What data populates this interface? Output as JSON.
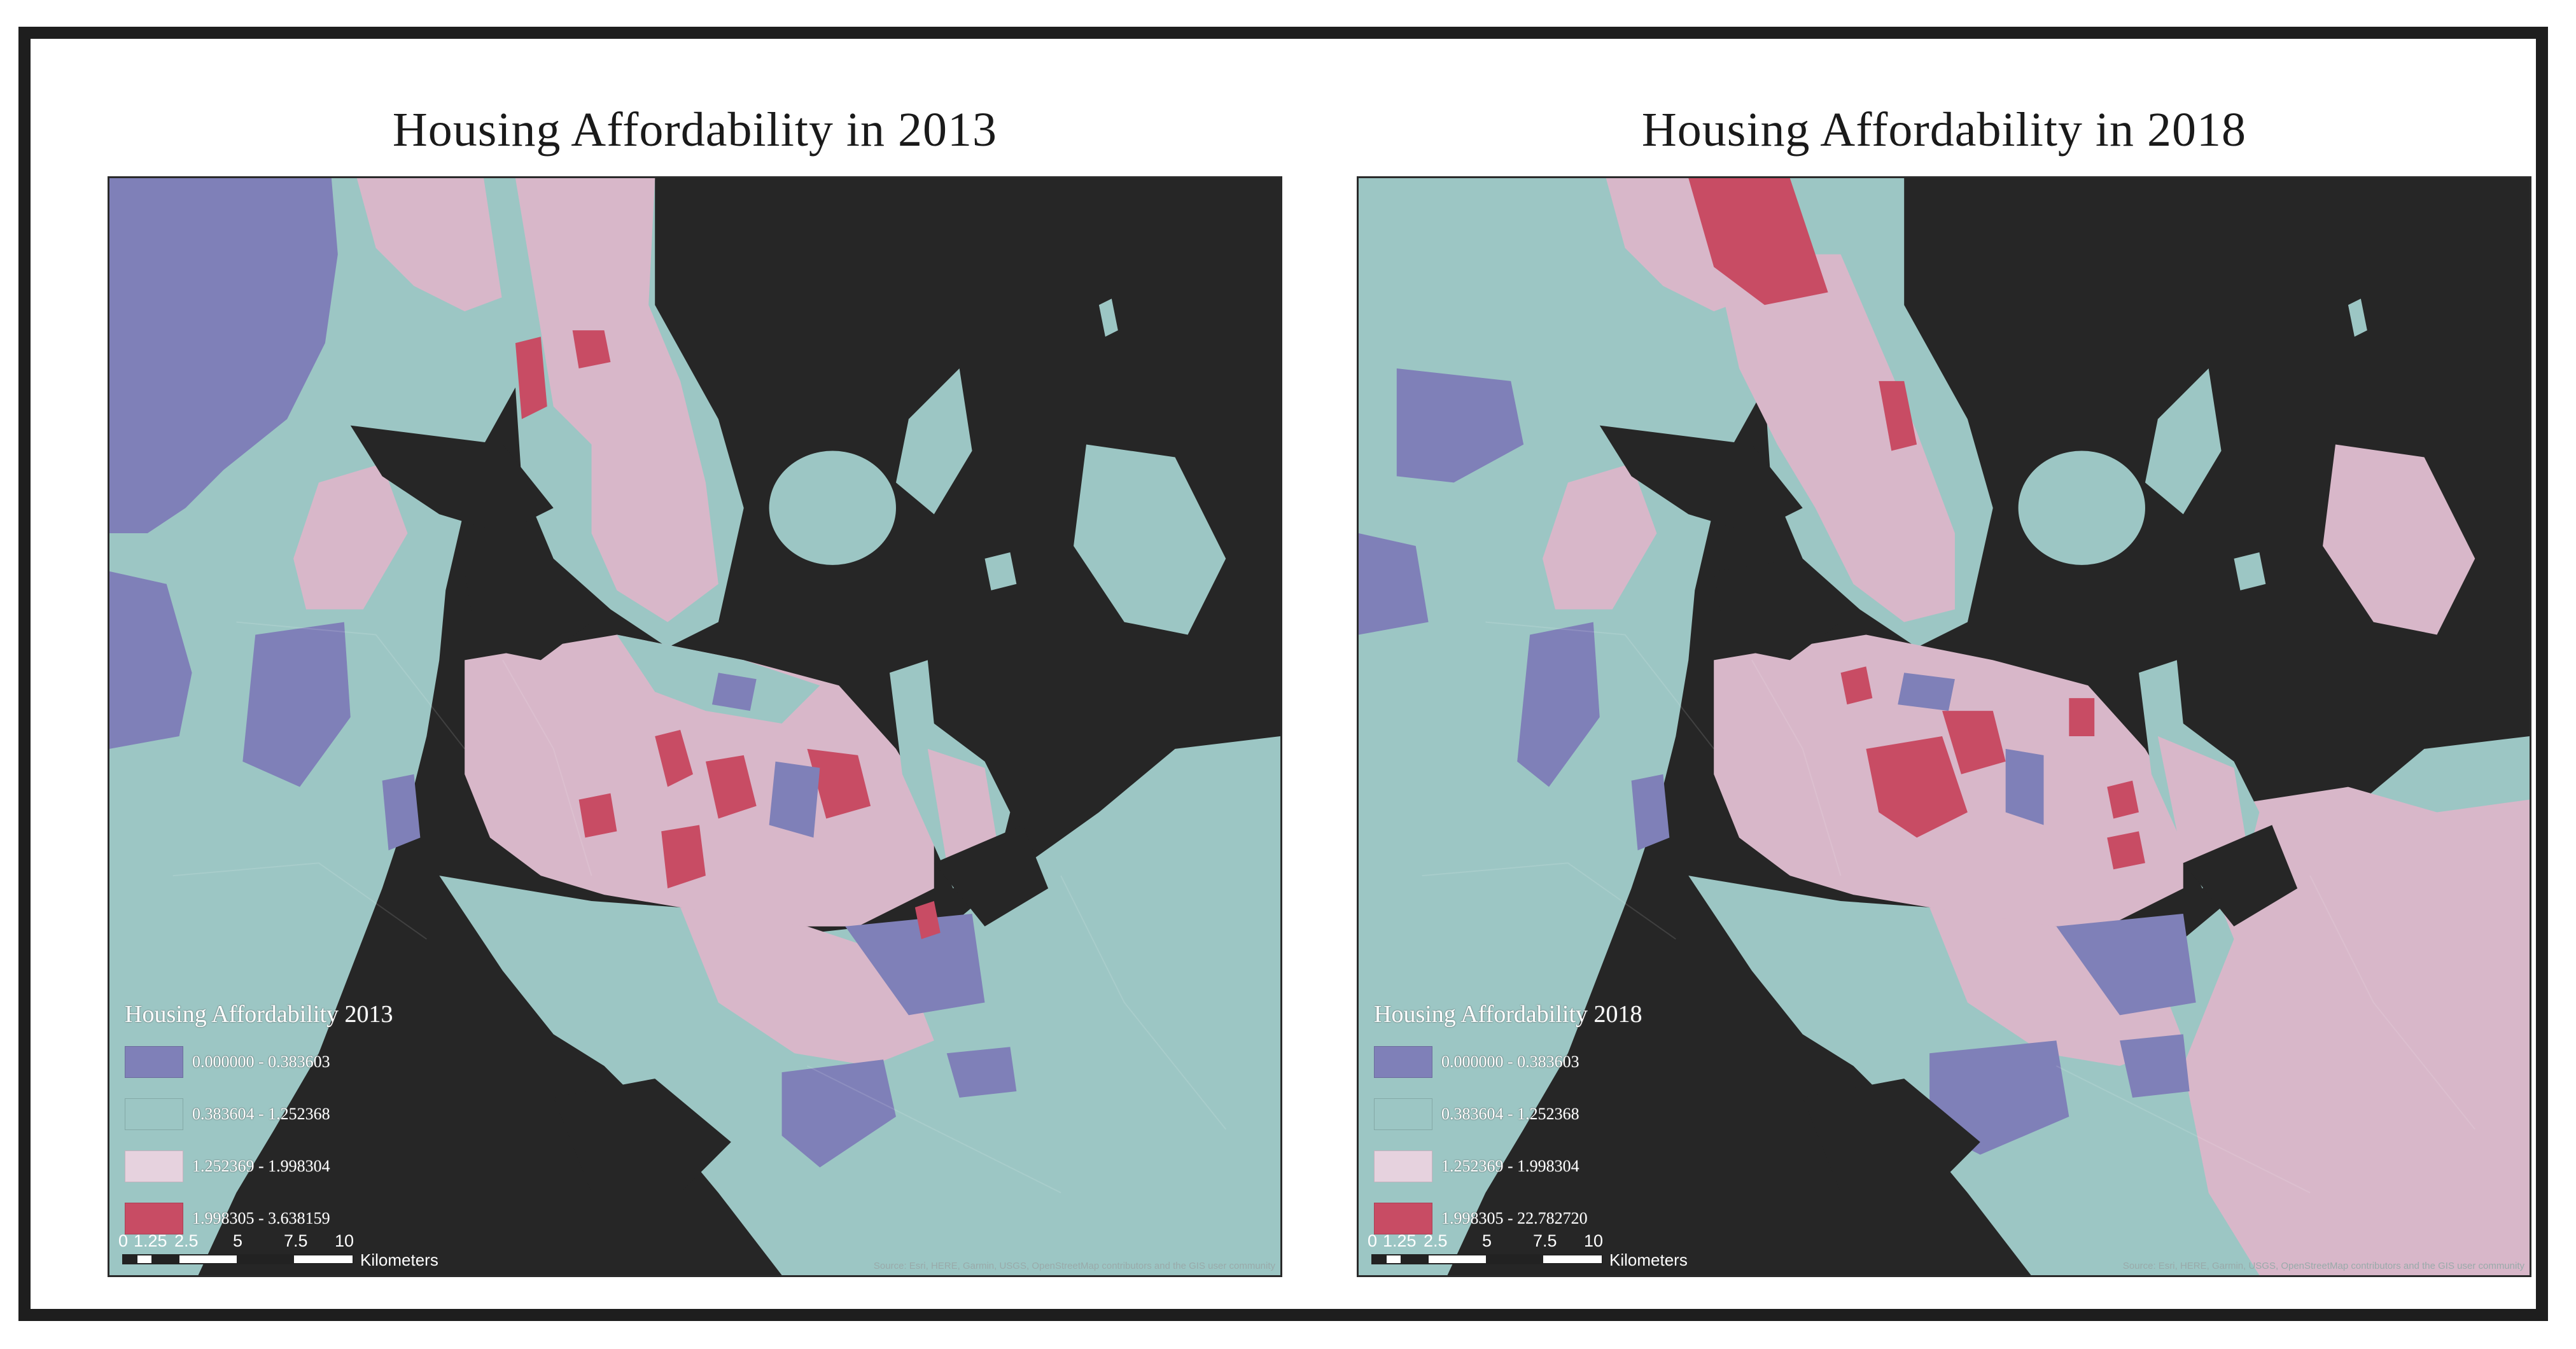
{
  "colors": {
    "water": "#262626",
    "class1": "#7f80b8",
    "class2": "#9cc6c4",
    "class3": "#d8b7c9",
    "class4": "#c84c64"
  },
  "panels": [
    {
      "title": "Housing Affordability in 2013",
      "legend": {
        "title": "Housing Affordability 2013",
        "items": [
          {
            "label": "0.000000 - 0.383603",
            "color": "#7f80b8"
          },
          {
            "label": "0.383604 - 1.252368",
            "color": "#9cc6c4"
          },
          {
            "label": "1.252369 - 1.998304",
            "color": "#e6d2de"
          },
          {
            "label": "1.998305 - 3.638159",
            "color": "#c84c64"
          }
        ]
      },
      "scale": {
        "ticks": [
          "0",
          "1.25",
          "2.5",
          "5",
          "7.5",
          "10"
        ],
        "unit": "Kilometers"
      },
      "credits": "Source: Esri, HERE, Garmin, USGS, OpenStreetMap contributors and the GIS user community"
    },
    {
      "title": "Housing Affordability in 2018",
      "legend": {
        "title": "Housing Affordability 2018",
        "items": [
          {
            "label": "0.000000 - 0.383603",
            "color": "#7f80b8"
          },
          {
            "label": "0.383604 - 1.252368",
            "color": "#9cc6c4"
          },
          {
            "label": "1.252369 - 1.998304",
            "color": "#e6d2de"
          },
          {
            "label": "1.998305 - 22.782720",
            "color": "#c84c64"
          }
        ]
      },
      "scale": {
        "ticks": [
          "0",
          "1.25",
          "2.5",
          "5",
          "7.5",
          "10"
        ],
        "unit": "Kilometers"
      },
      "credits": "Source: Esri, HERE, Garmin, USGS, OpenStreetMap contributors and the GIS user community"
    }
  ]
}
